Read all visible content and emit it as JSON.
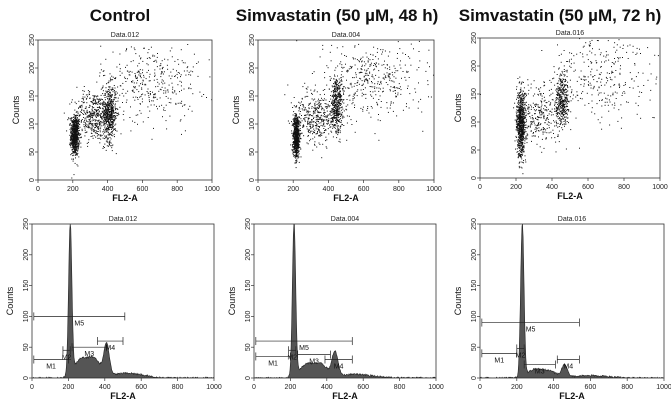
{
  "columns": [
    {
      "title": "Control"
    },
    {
      "title": "Simvastatin (50 µM, 48 h)"
    },
    {
      "title": "Simvastatin (50 µM, 72 h)"
    }
  ],
  "chart_data": [
    {
      "type": "scatter",
      "title": "Data.012",
      "xlabel": "FL2-A",
      "ylabel": "Counts",
      "xlim": [
        0,
        1000
      ],
      "ylim": [
        0,
        250
      ],
      "xticks": [
        0,
        200,
        400,
        600,
        800,
        1000
      ],
      "yticks": [
        0,
        50,
        100,
        150,
        200,
        250
      ],
      "clusters": [
        {
          "x": 210,
          "y": 80,
          "sx": 12,
          "sy": 18,
          "n": 700
        },
        {
          "x": 320,
          "y": 115,
          "sx": 55,
          "sy": 22,
          "n": 450
        },
        {
          "x": 410,
          "y": 120,
          "sx": 18,
          "sy": 25,
          "n": 500
        },
        {
          "x": 640,
          "y": 175,
          "sx": 140,
          "sy": 35,
          "n": 380
        }
      ]
    },
    {
      "type": "scatter",
      "title": "Data.004",
      "xlabel": "FL2-A",
      "ylabel": "Counts",
      "xlim": [
        0,
        1000
      ],
      "ylim": [
        0,
        250
      ],
      "xticks": [
        0,
        200,
        400,
        600,
        800,
        1000
      ],
      "yticks": [
        0,
        50,
        100,
        150,
        200,
        250
      ],
      "clusters": [
        {
          "x": 215,
          "y": 78,
          "sx": 10,
          "sy": 20,
          "n": 700
        },
        {
          "x": 330,
          "y": 112,
          "sx": 60,
          "sy": 22,
          "n": 380
        },
        {
          "x": 445,
          "y": 135,
          "sx": 18,
          "sy": 25,
          "n": 420
        },
        {
          "x": 640,
          "y": 180,
          "sx": 140,
          "sy": 35,
          "n": 420
        }
      ]
    },
    {
      "type": "scatter",
      "title": "Data.016",
      "xlabel": "FL2-A",
      "ylabel": "Counts",
      "xlim": [
        0,
        1000
      ],
      "ylim": [
        0,
        250
      ],
      "xticks": [
        0,
        200,
        400,
        600,
        800,
        1000
      ],
      "yticks": [
        0,
        50,
        100,
        150,
        200,
        250
      ],
      "clusters": [
        {
          "x": 225,
          "y": 95,
          "sx": 12,
          "sy": 30,
          "n": 800
        },
        {
          "x": 330,
          "y": 110,
          "sx": 55,
          "sy": 25,
          "n": 260
        },
        {
          "x": 455,
          "y": 140,
          "sx": 18,
          "sy": 25,
          "n": 380
        },
        {
          "x": 680,
          "y": 180,
          "sx": 160,
          "sy": 40,
          "n": 320
        }
      ]
    },
    {
      "type": "area",
      "title": "Data.012",
      "xlabel": "FL2-A",
      "ylabel": "Counts",
      "xlim": [
        0,
        1000
      ],
      "ylim": [
        0,
        250
      ],
      "xticks": [
        0,
        200,
        400,
        600,
        800,
        1000
      ],
      "yticks": [
        0,
        50,
        100,
        150,
        200,
        250
      ],
      "peaks": [
        {
          "x": 210,
          "h": 245,
          "w": 9
        },
        {
          "x": 265,
          "h": 28,
          "w": 35
        },
        {
          "x": 340,
          "h": 30,
          "w": 35
        },
        {
          "x": 410,
          "h": 50,
          "w": 15
        },
        {
          "x": 520,
          "h": 8,
          "w": 90
        }
      ],
      "markers": [
        {
          "label": "M1",
          "x1": 10,
          "x2": 200,
          "y": 30
        },
        {
          "label": "M2",
          "x1": 170,
          "x2": 210,
          "y": 45
        },
        {
          "label": "M3",
          "x1": 220,
          "x2": 410,
          "y": 50
        },
        {
          "label": "M4",
          "x1": 360,
          "x2": 500,
          "y": 60
        },
        {
          "label": "M5",
          "x1": 10,
          "x2": 510,
          "y": 100
        }
      ]
    },
    {
      "type": "area",
      "title": "Data.004",
      "xlabel": "FL2-A",
      "ylabel": "Counts",
      "xlim": [
        0,
        1000
      ],
      "ylim": [
        0,
        250
      ],
      "xticks": [
        0,
        200,
        400,
        600,
        800,
        1000
      ],
      "yticks": [
        0,
        50,
        100,
        150,
        200,
        250
      ],
      "peaks": [
        {
          "x": 220,
          "h": 250,
          "w": 9
        },
        {
          "x": 290,
          "h": 22,
          "w": 40
        },
        {
          "x": 370,
          "h": 20,
          "w": 35
        },
        {
          "x": 445,
          "h": 40,
          "w": 16
        },
        {
          "x": 560,
          "h": 6,
          "w": 90
        }
      ],
      "markers": [
        {
          "label": "M1",
          "x1": 10,
          "x2": 200,
          "y": 35
        },
        {
          "label": "M2",
          "x1": 190,
          "x2": 230,
          "y": 45
        },
        {
          "label": "M3",
          "x1": 240,
          "x2": 420,
          "y": 38
        },
        {
          "label": "M4",
          "x1": 390,
          "x2": 540,
          "y": 30
        },
        {
          "label": "M5",
          "x1": 10,
          "x2": 540,
          "y": 60
        }
      ]
    },
    {
      "type": "area",
      "title": "Data.016",
      "xlabel": "FL2-A",
      "ylabel": "Counts",
      "xlim": [
        0,
        1000
      ],
      "ylim": [
        0,
        250
      ],
      "xticks": [
        0,
        200,
        400,
        600,
        800,
        1000
      ],
      "yticks": [
        0,
        50,
        100,
        150,
        200,
        250
      ],
      "peaks": [
        {
          "x": 230,
          "h": 250,
          "w": 9
        },
        {
          "x": 300,
          "h": 14,
          "w": 40
        },
        {
          "x": 380,
          "h": 10,
          "w": 35
        },
        {
          "x": 460,
          "h": 20,
          "w": 16
        },
        {
          "x": 600,
          "h": 4,
          "w": 90
        }
      ],
      "markers": [
        {
          "label": "M1",
          "x1": 10,
          "x2": 200,
          "y": 40
        },
        {
          "label": "M2",
          "x1": 200,
          "x2": 240,
          "y": 48
        },
        {
          "label": "M3",
          "x1": 240,
          "x2": 410,
          "y": 22
        },
        {
          "label": "M4",
          "x1": 420,
          "x2": 540,
          "y": 30
        },
        {
          "label": "M5",
          "x1": 10,
          "x2": 540,
          "y": 90
        }
      ]
    }
  ]
}
